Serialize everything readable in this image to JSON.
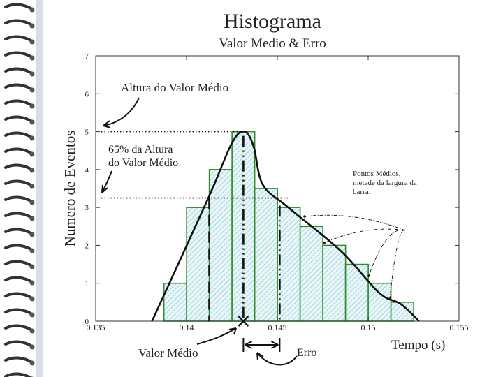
{
  "colors": {
    "bar_edge": "#2e8b2e",
    "bar_hatch": "#8ecfd6",
    "curve": "#111111",
    "binding": "#333333"
  },
  "chart_data": {
    "type": "bar",
    "title": "Histograma",
    "subtitle": "Valor Medio & Erro",
    "xlabel": "Tempo (s)",
    "ylabel": "Numero de Eventos",
    "xlim": [
      0.135,
      0.155
    ],
    "ylim": [
      0,
      7
    ],
    "x_ticks": [
      "0.135",
      "0.14",
      "0.145",
      "0.15",
      "0.155"
    ],
    "y_ticks": [
      "0",
      "1",
      "2",
      "3",
      "4",
      "5",
      "6",
      "7"
    ],
    "bin_width": 0.00125,
    "bin_centers": [
      0.13938,
      0.14063,
      0.14188,
      0.14313,
      0.14438,
      0.14563,
      0.14688,
      0.14813,
      0.14938,
      0.15063,
      0.15188
    ],
    "values": [
      1,
      3,
      4,
      5,
      3.5,
      3,
      2.5,
      2,
      1.5,
      1,
      0.5
    ],
    "mean": 0.14313,
    "peak_height": 5,
    "height_65": 3.25,
    "half_width_left": 0.14125,
    "half_width_right": 0.14313,
    "error_interval": [
      0.14313,
      0.14513
    ],
    "curve_points": [
      [
        0.1381,
        0
      ],
      [
        0.1412,
        3.25
      ],
      [
        0.1425,
        4.7
      ],
      [
        0.1432,
        5
      ],
      [
        0.1437,
        4.6
      ],
      [
        0.1442,
        3.6
      ],
      [
        0.1456,
        3
      ],
      [
        0.1485,
        1.85
      ],
      [
        0.1506,
        0.75
      ],
      [
        0.1518,
        0.45
      ],
      [
        0.1528,
        0
      ]
    ],
    "grid": false,
    "legend": "none"
  },
  "annotations": {
    "peak_height": "Altura do Valor Médio",
    "pct65_line1": "65% da Altura",
    "pct65_line2": "do Valor Médio",
    "midpoints_line1": "Pontos Médios,",
    "midpoints_line2": "metade da largura da",
    "midpoints_line3": "barra.",
    "mean_value": "Valor Médio",
    "error": "Erro"
  }
}
